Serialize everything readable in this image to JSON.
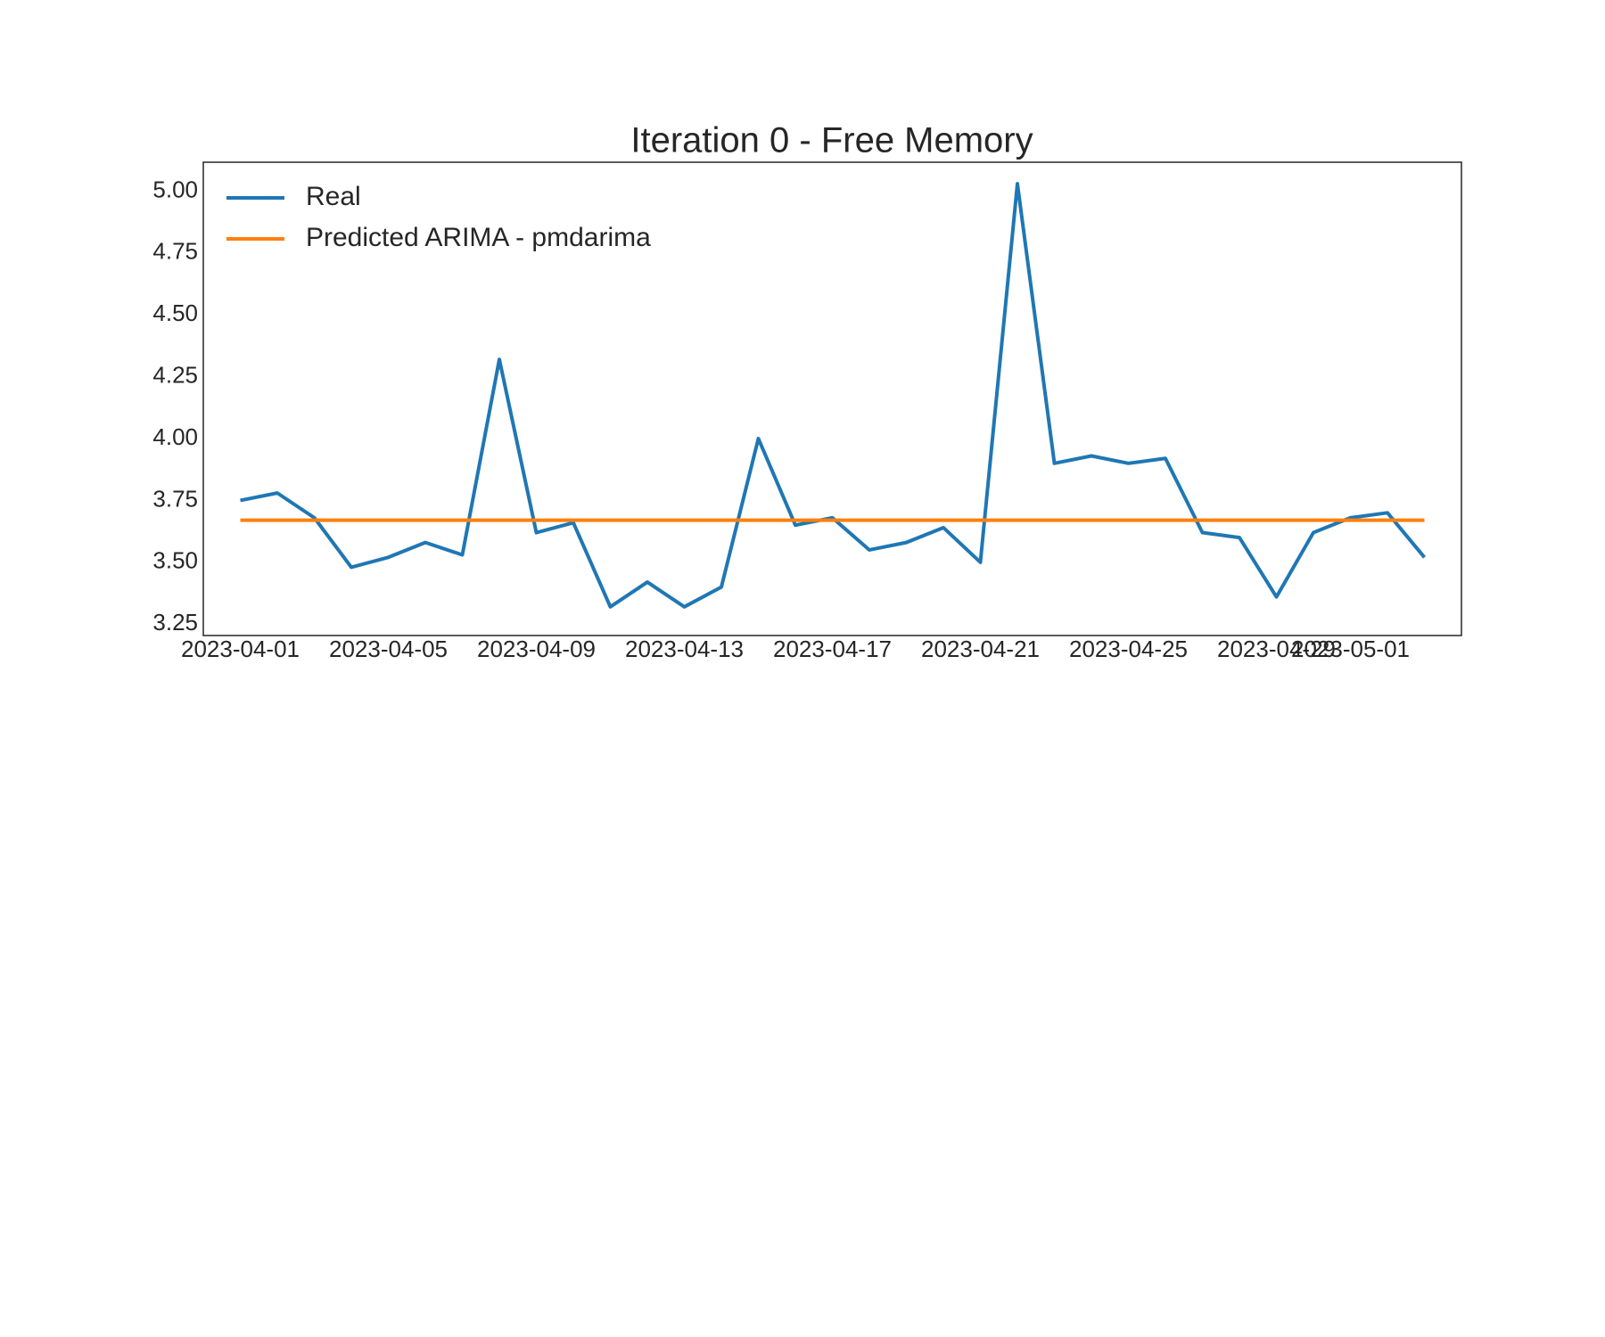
{
  "chart_data": {
    "type": "line",
    "title": "Iteration 0 - Free Memory",
    "x": [
      "2023-04-01",
      "2023-04-02",
      "2023-04-03",
      "2023-04-04",
      "2023-04-05",
      "2023-04-06",
      "2023-04-07",
      "2023-04-08",
      "2023-04-09",
      "2023-04-10",
      "2023-04-11",
      "2023-04-12",
      "2023-04-13",
      "2023-04-14",
      "2023-04-15",
      "2023-04-16",
      "2023-04-17",
      "2023-04-18",
      "2023-04-19",
      "2023-04-20",
      "2023-04-21",
      "2023-04-22",
      "2023-04-23",
      "2023-04-24",
      "2023-04-25",
      "2023-04-26",
      "2023-04-27",
      "2023-04-28",
      "2023-04-29",
      "2023-04-30",
      "2023-05-01",
      "2023-05-02",
      "2023-05-03"
    ],
    "series": [
      {
        "name": "Real",
        "color": "#1f77b4",
        "values": [
          3.75,
          3.78,
          3.68,
          3.48,
          3.52,
          3.58,
          3.53,
          4.32,
          3.62,
          3.66,
          3.32,
          3.42,
          3.32,
          3.4,
          4.0,
          3.65,
          3.68,
          3.55,
          3.58,
          3.64,
          3.5,
          5.03,
          3.9,
          3.93,
          3.9,
          3.92,
          3.62,
          3.6,
          3.36,
          3.62,
          3.68,
          3.7,
          3.52
        ]
      },
      {
        "name": "Predicted ARIMA - pmdarima",
        "color": "#ff7f0e",
        "values": [
          3.67,
          3.67,
          3.67,
          3.67,
          3.67,
          3.67,
          3.67,
          3.67,
          3.67,
          3.67,
          3.67,
          3.67,
          3.67,
          3.67,
          3.67,
          3.67,
          3.67,
          3.67,
          3.67,
          3.67,
          3.67,
          3.67,
          3.67,
          3.67,
          3.67,
          3.67,
          3.67,
          3.67,
          3.67,
          3.67,
          3.67,
          3.67,
          3.67
        ]
      }
    ],
    "xlim": [
      "2023-03-31",
      "2023-05-04"
    ],
    "xticks": [
      "2023-04-01",
      "2023-04-05",
      "2023-04-09",
      "2023-04-13",
      "2023-04-17",
      "2023-04-21",
      "2023-04-25",
      "2023-04-29",
      "2023-05-01"
    ],
    "ylim": [
      3.204,
      5.117
    ],
    "yticks": [
      {
        "value": 3.25,
        "label": "3.25"
      },
      {
        "value": 3.5,
        "label": "3.50"
      },
      {
        "value": 3.75,
        "label": "3.75"
      },
      {
        "value": 4.0,
        "label": "4.00"
      },
      {
        "value": 4.25,
        "label": "4.25"
      },
      {
        "value": 4.5,
        "label": "4.50"
      },
      {
        "value": 4.75,
        "label": "4.75"
      },
      {
        "value": 5.0,
        "label": "5.00"
      }
    ],
    "grid": false,
    "legend": "upper left"
  }
}
